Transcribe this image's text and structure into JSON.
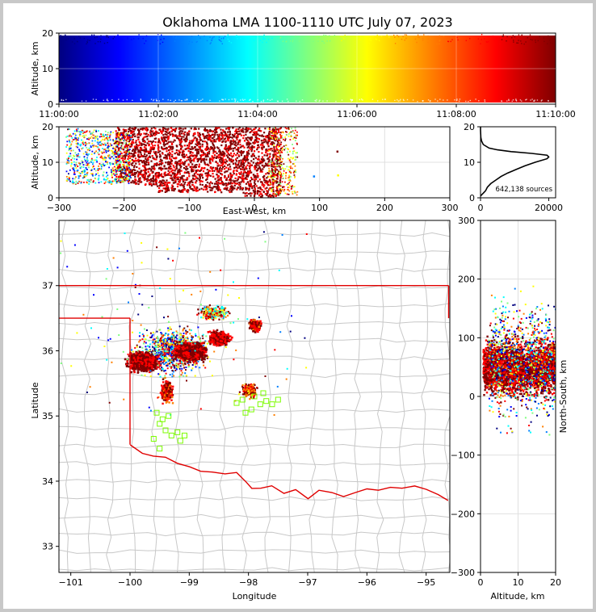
{
  "chart_data": {
    "type": "scatter",
    "title": "Oklahoma LMA 1100-1110 UTC July 07, 2023",
    "colors": {
      "jet": [
        "#00007f",
        "#0000ff",
        "#007fff",
        "#00ffff",
        "#7fff7f",
        "#ffff00",
        "#ff7f00",
        "#ff0000",
        "#7f0000"
      ],
      "state_line": "#e00000",
      "county_line": "#c8c8c8",
      "highlight_box": "#7cfc00"
    },
    "time_panel": {
      "ylabel": "Altitude, km",
      "ylim": [
        0,
        20
      ],
      "yticks": [
        "0",
        "10",
        "20"
      ],
      "xticks": [
        "11:00:00",
        "11:02:00",
        "11:04:00",
        "11:06:00",
        "11:08:00",
        "11:10:00"
      ]
    },
    "ew_panel": {
      "xlabel": "East-West, km",
      "ylabel": "Altitude, km",
      "xlim": [
        -300,
        300
      ],
      "ylim": [
        0,
        20
      ],
      "xticks": [
        "−300",
        "−200",
        "−100",
        "0",
        "100",
        "200",
        "300"
      ],
      "yticks": [
        "0",
        "10",
        "20"
      ]
    },
    "histogram_panel": {
      "xlim": [
        0,
        22000
      ],
      "ylim": [
        0,
        20
      ],
      "xticks": [
        "0",
        "20000"
      ],
      "yticks": [
        "0",
        "10",
        "20"
      ],
      "annotation": "642,138 sources",
      "profile": {
        "altitude_km": [
          0.5,
          1,
          1.5,
          2,
          3,
          4,
          5,
          6,
          7,
          8,
          9,
          10,
          11,
          11.5,
          12,
          12.5,
          13,
          13.5,
          14,
          15,
          16,
          17,
          18,
          19,
          20
        ],
        "count": [
          0,
          500,
          1000,
          1500,
          2000,
          3000,
          4500,
          6000,
          8000,
          10500,
          13000,
          16000,
          19500,
          20000,
          19500,
          15000,
          9000,
          5000,
          2500,
          800,
          300,
          100,
          40,
          10,
          0
        ]
      }
    },
    "plan_panel": {
      "xlabel": "Longitude",
      "ylabel": "Latitude",
      "xlim": [
        -101.2,
        -94.6
      ],
      "ylim": [
        32.6,
        38.0
      ],
      "xticks": [
        "−101",
        "−100",
        "−99",
        "−98",
        "−97",
        "−96",
        "−95"
      ],
      "yticks": [
        "33",
        "34",
        "35",
        "36",
        "37"
      ]
    },
    "ns_panel": {
      "xlabel": "Altitude, km",
      "ylabel": "North-South, km",
      "xlim": [
        0,
        20
      ],
      "ylim": [
        -300,
        300
      ],
      "xticks": [
        "0",
        "10",
        "20"
      ],
      "yticks": [
        "−300",
        "−200",
        "−100",
        "0",
        "100",
        "200",
        "300"
      ]
    }
  }
}
